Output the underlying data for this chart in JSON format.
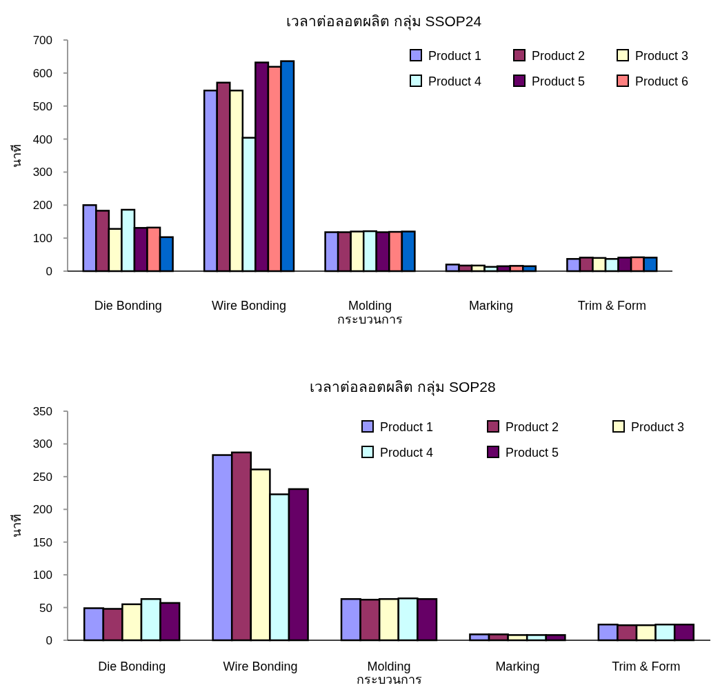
{
  "chart_data": [
    {
      "type": "bar",
      "title": "เวลาต่อลอตผลิต กลุ่ม SSOP24",
      "xlabel": "กระบวนการ",
      "ylabel": "นาที",
      "categories": [
        "Die Bonding",
        "Wire Bonding",
        "Molding",
        "Marking",
        "Trim & Form"
      ],
      "ylim": [
        0,
        700
      ],
      "yticks": [
        0,
        100,
        200,
        300,
        400,
        500,
        600,
        700
      ],
      "legend": "top right",
      "grid": false,
      "series": [
        {
          "name": "Product 1",
          "color": "#9999ff",
          "values": [
            200,
            547,
            118,
            20,
            37
          ]
        },
        {
          "name": "Product 2",
          "color": "#993366",
          "values": [
            183,
            571,
            118,
            17,
            41
          ]
        },
        {
          "name": "Product 3",
          "color": "#ffffcc",
          "values": [
            128,
            547,
            120,
            17,
            40
          ]
        },
        {
          "name": "Product 4",
          "color": "#ccffff",
          "values": [
            186,
            404,
            121,
            13,
            37
          ]
        },
        {
          "name": "Product 5",
          "color": "#660066",
          "values": [
            131,
            632,
            118,
            15,
            41
          ]
        },
        {
          "name": "Product 6",
          "color": "#ff8080",
          "values": [
            132,
            619,
            119,
            16,
            42
          ]
        },
        {
          "color": "#0066cc",
          "values": [
            103,
            636,
            120,
            15,
            41
          ]
        }
      ]
    },
    {
      "type": "bar",
      "title": "เวลาต่อลอตผลิต กลุ่ม SOP28",
      "xlabel": "กระบวนการ",
      "ylabel": "นาที",
      "categories": [
        "Die Bonding",
        "Wire Bonding",
        "Molding",
        "Marking",
        "Trim & Form"
      ],
      "ylim": [
        0,
        350
      ],
      "yticks": [
        0,
        50,
        100,
        150,
        200,
        250,
        300,
        350
      ],
      "legend": "top right",
      "grid": false,
      "series": [
        {
          "name": "Product 1",
          "color": "#9999ff",
          "values": [
            49,
            283,
            63,
            9,
            24
          ]
        },
        {
          "name": "Product 2",
          "color": "#993366",
          "values": [
            48,
            287,
            62,
            9,
            23
          ]
        },
        {
          "name": "Product 3",
          "color": "#ffffcc",
          "values": [
            55,
            261,
            63,
            8,
            23
          ]
        },
        {
          "name": "Product 4",
          "color": "#ccffff",
          "values": [
            63,
            223,
            64,
            8,
            24
          ]
        },
        {
          "name": "Product 5",
          "color": "#660066",
          "values": [
            57,
            231,
            63,
            8,
            24
          ]
        }
      ]
    }
  ]
}
